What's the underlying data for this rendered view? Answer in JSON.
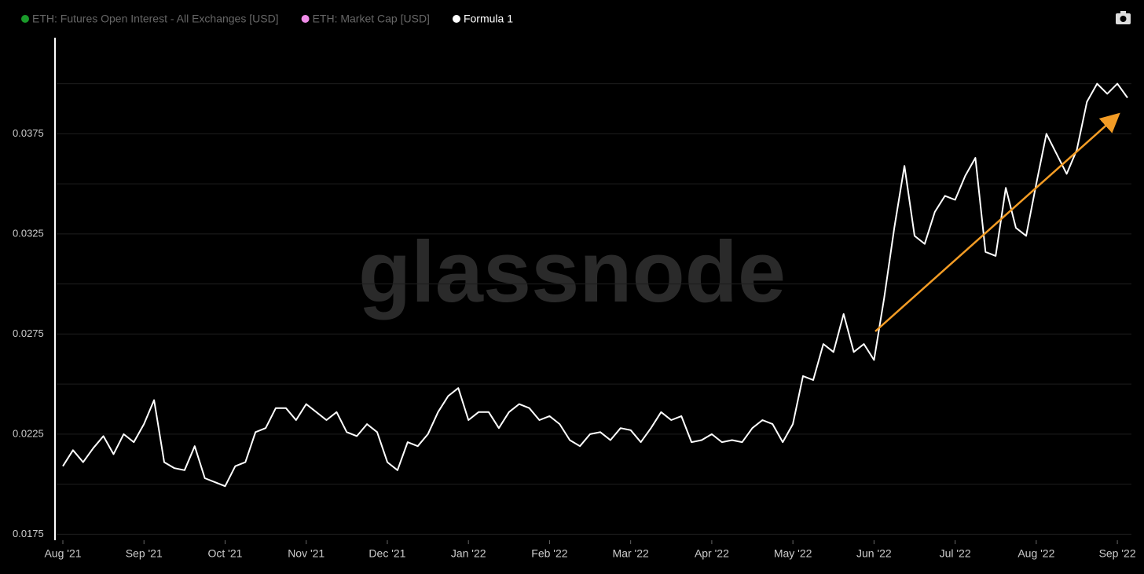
{
  "chart_data": {
    "type": "line",
    "watermark": "glassnode",
    "series": [
      {
        "name": "ETH: Futures Open Interest - All Exchanges [USD]",
        "color": "#1a9a2a",
        "visible": false
      },
      {
        "name": "ETH: Market Cap [USD]",
        "color": "#f08ce8",
        "visible": false
      },
      {
        "name": "Formula 1",
        "color": "#ffffff",
        "visible": true,
        "values": [
          0.0209,
          0.0217,
          0.0211,
          0.0218,
          0.0224,
          0.0215,
          0.0225,
          0.0221,
          0.023,
          0.0242,
          0.0211,
          0.0208,
          0.0207,
          0.0219,
          0.0203,
          0.0201,
          0.0199,
          0.0209,
          0.0211,
          0.0226,
          0.0228,
          0.0238,
          0.0238,
          0.0232,
          0.024,
          0.0236,
          0.0232,
          0.0236,
          0.0226,
          0.0224,
          0.023,
          0.0226,
          0.0211,
          0.0207,
          0.0221,
          0.0219,
          0.0225,
          0.0236,
          0.0244,
          0.0248,
          0.0232,
          0.0236,
          0.0236,
          0.0228,
          0.0236,
          0.024,
          0.0238,
          0.0232,
          0.0234,
          0.023,
          0.0222,
          0.0219,
          0.0225,
          0.0226,
          0.0222,
          0.0228,
          0.0227,
          0.0221,
          0.0228,
          0.0236,
          0.0232,
          0.0234,
          0.0221,
          0.0222,
          0.0225,
          0.0221,
          0.0222,
          0.0221,
          0.0228,
          0.0232,
          0.023,
          0.0221,
          0.023,
          0.0254,
          0.0252,
          0.027,
          0.0266,
          0.0285,
          0.0266,
          0.027,
          0.0262,
          0.0293,
          0.0328,
          0.0359,
          0.0324,
          0.032,
          0.0336,
          0.0344,
          0.0342,
          0.0354,
          0.0363,
          0.0316,
          0.0314,
          0.0348,
          0.0328,
          0.0324,
          0.035,
          0.0375,
          0.0365,
          0.0355,
          0.0367,
          0.0391,
          0.04,
          0.0395,
          0.04,
          0.0393
        ]
      }
    ],
    "categories": [
      "Aug '21",
      null,
      null,
      null,
      null,
      null,
      null,
      null,
      "Sep '21",
      null,
      null,
      null,
      null,
      null,
      null,
      null,
      "Oct '21",
      null,
      null,
      null,
      null,
      null,
      null,
      null,
      "Nov '21",
      null,
      null,
      null,
      null,
      null,
      null,
      null,
      "Dec '21",
      null,
      null,
      null,
      null,
      null,
      null,
      null,
      "Jan '22",
      null,
      null,
      null,
      null,
      null,
      null,
      null,
      "Feb '22",
      null,
      null,
      null,
      null,
      null,
      null,
      null,
      "Mar '22",
      null,
      null,
      null,
      null,
      null,
      null,
      null,
      "Apr '22",
      null,
      null,
      null,
      null,
      null,
      null,
      null,
      "May '22",
      null,
      null,
      null,
      null,
      null,
      null,
      null,
      "Jun '22",
      null,
      null,
      null,
      null,
      null,
      null,
      null,
      "Jul '22",
      null,
      null,
      null,
      null,
      null,
      null,
      null,
      "Aug '22",
      null,
      null,
      null,
      null,
      null,
      null,
      null,
      "Sep '22",
      null
    ],
    "ylim": [
      0.0172,
      0.0423
    ],
    "yticks": [
      0.0175,
      0.0225,
      0.0275,
      0.0325,
      0.0375
    ],
    "minor_yticks": [
      0.02,
      0.025,
      0.03,
      0.035,
      0.04
    ],
    "grid": true
  }
}
